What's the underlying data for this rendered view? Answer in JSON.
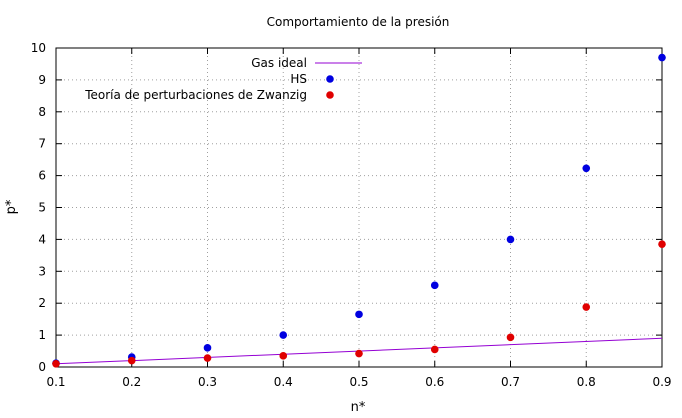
{
  "chart_data": {
    "type": "scatter",
    "title": "Comportamiento de la presión",
    "xlabel": "n*",
    "ylabel": "p*",
    "xlim": [
      0.1,
      0.9
    ],
    "ylim": [
      0,
      10
    ],
    "xticks": [
      0.1,
      0.2,
      0.3,
      0.4,
      0.5,
      0.6,
      0.7,
      0.8,
      0.9
    ],
    "xtick_labels": [
      "0.1",
      "0.2",
      "0.3",
      "0.4",
      "0.5",
      "0.6",
      "0.7",
      "0.8",
      "0.9"
    ],
    "yticks": [
      0,
      1,
      2,
      3,
      4,
      5,
      6,
      7,
      8,
      9,
      10
    ],
    "ytick_labels": [
      "0",
      "1",
      "2",
      "3",
      "4",
      "5",
      "6",
      "7",
      "8",
      "9",
      "10"
    ],
    "grid": true,
    "legend_position": "top-left",
    "series": [
      {
        "name": "Gas ideal",
        "kind": "line",
        "color": "#9400d3",
        "x": [
          0.1,
          0.9
        ],
        "y": [
          0.1,
          0.9
        ]
      },
      {
        "name": "HS",
        "kind": "points",
        "color": "#0000e0",
        "x": [
          0.1,
          0.2,
          0.3,
          0.4,
          0.5,
          0.6,
          0.7,
          0.8,
          0.9
        ],
        "y": [
          0.12,
          0.31,
          0.6,
          1.0,
          1.65,
          2.56,
          4.0,
          6.23,
          9.7
        ]
      },
      {
        "name": "Teoría de perturbaciones de Zwanzig",
        "kind": "points",
        "color": "#e00000",
        "x": [
          0.1,
          0.2,
          0.3,
          0.4,
          0.5,
          0.6,
          0.7,
          0.8,
          0.9
        ],
        "y": [
          0.1,
          0.2,
          0.28,
          0.35,
          0.42,
          0.55,
          0.93,
          1.88,
          3.85
        ]
      }
    ]
  }
}
